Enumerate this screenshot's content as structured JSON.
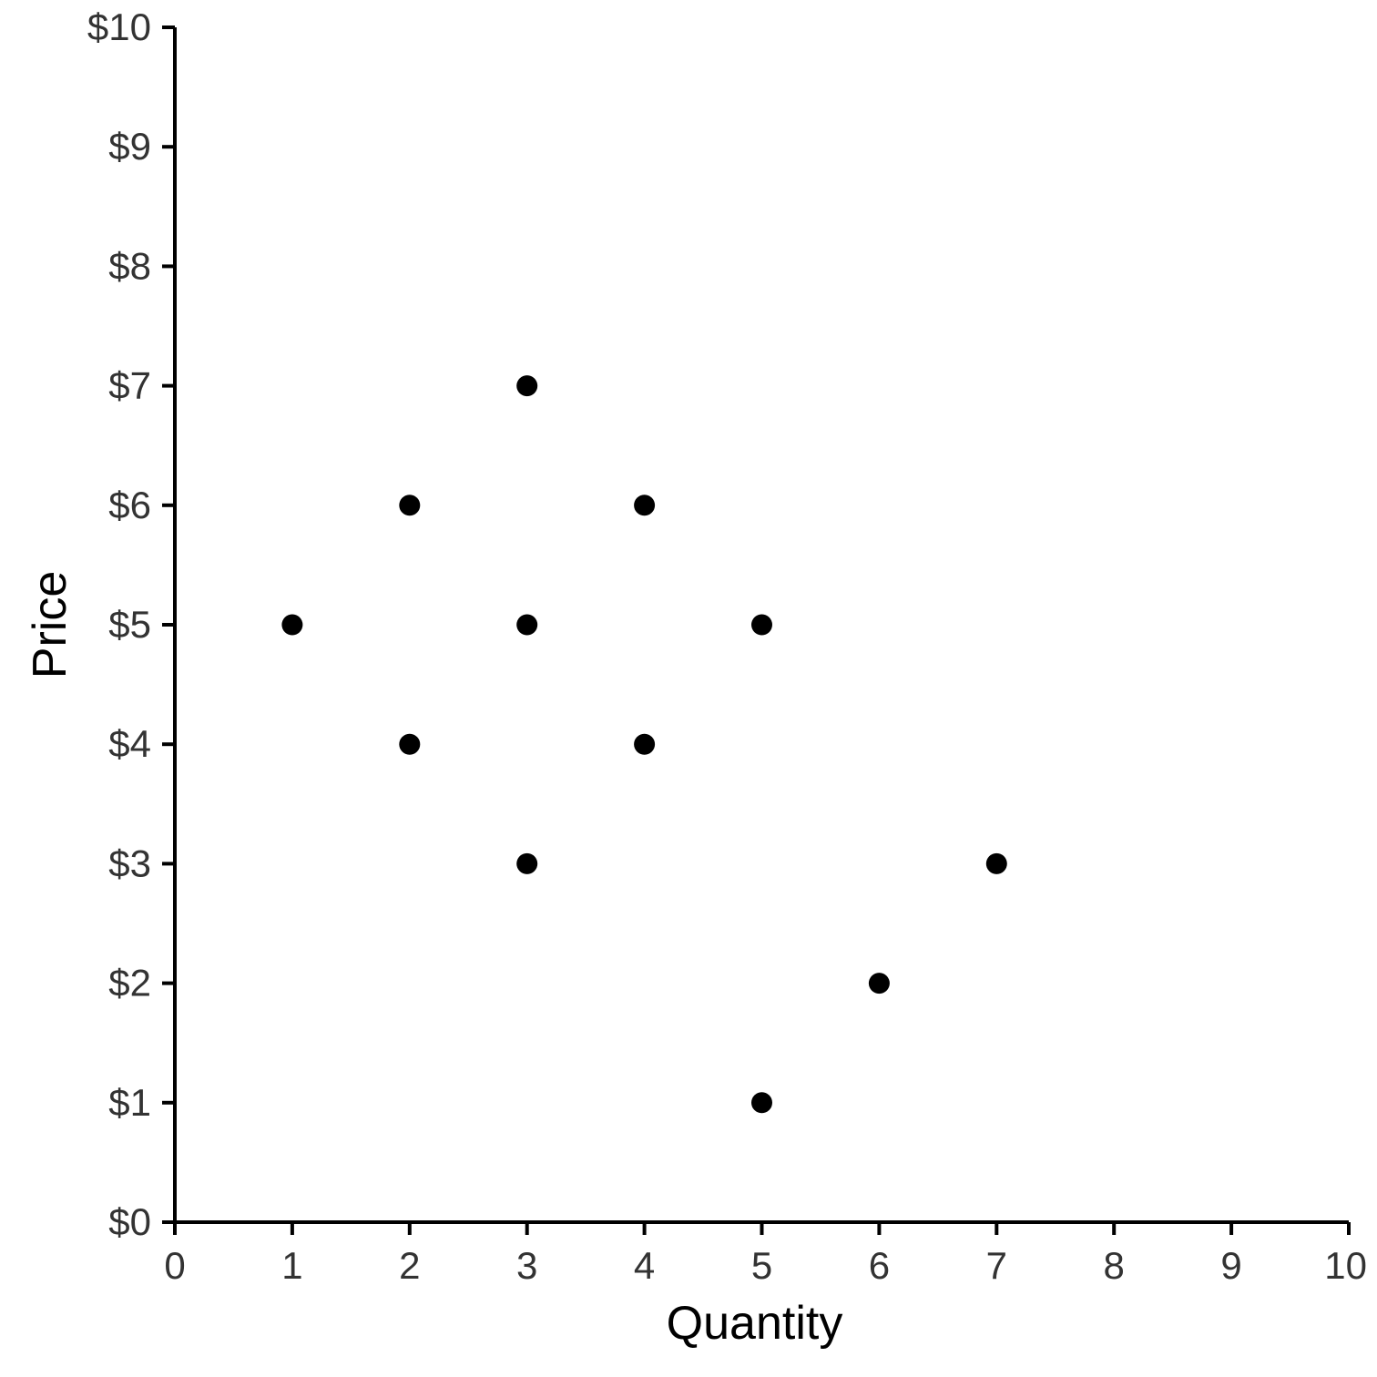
{
  "chart_data": {
    "type": "scatter",
    "title": "",
    "xlabel": "Quantity",
    "ylabel": "Price",
    "xlim": [
      0,
      10
    ],
    "ylim": [
      0,
      10
    ],
    "xticks": [
      0,
      1,
      2,
      3,
      4,
      5,
      6,
      7,
      8,
      9,
      10
    ],
    "xtick_labels": [
      "0",
      "1",
      "2",
      "3",
      "4",
      "5",
      "6",
      "7",
      "8",
      "9",
      "10"
    ],
    "yticks": [
      0,
      1,
      2,
      3,
      4,
      5,
      6,
      7,
      8,
      9,
      10
    ],
    "ytick_labels": [
      "$0",
      "$1",
      "$2",
      "$3",
      "$4",
      "$5",
      "$6",
      "$7",
      "$8",
      "$9",
      "$10"
    ],
    "grid": false,
    "legend": "none",
    "point_color": "#000000",
    "axis_color": "#000000",
    "tick_label_color": "#333333",
    "series": [
      {
        "points": [
          {
            "x": 1,
            "y": 5
          },
          {
            "x": 2,
            "y": 6
          },
          {
            "x": 2,
            "y": 4
          },
          {
            "x": 3,
            "y": 7
          },
          {
            "x": 3,
            "y": 5
          },
          {
            "x": 3,
            "y": 3
          },
          {
            "x": 4,
            "y": 6
          },
          {
            "x": 4,
            "y": 4
          },
          {
            "x": 5,
            "y": 5
          },
          {
            "x": 5,
            "y": 1
          },
          {
            "x": 6,
            "y": 2
          },
          {
            "x": 7,
            "y": 3
          }
        ]
      }
    ]
  }
}
